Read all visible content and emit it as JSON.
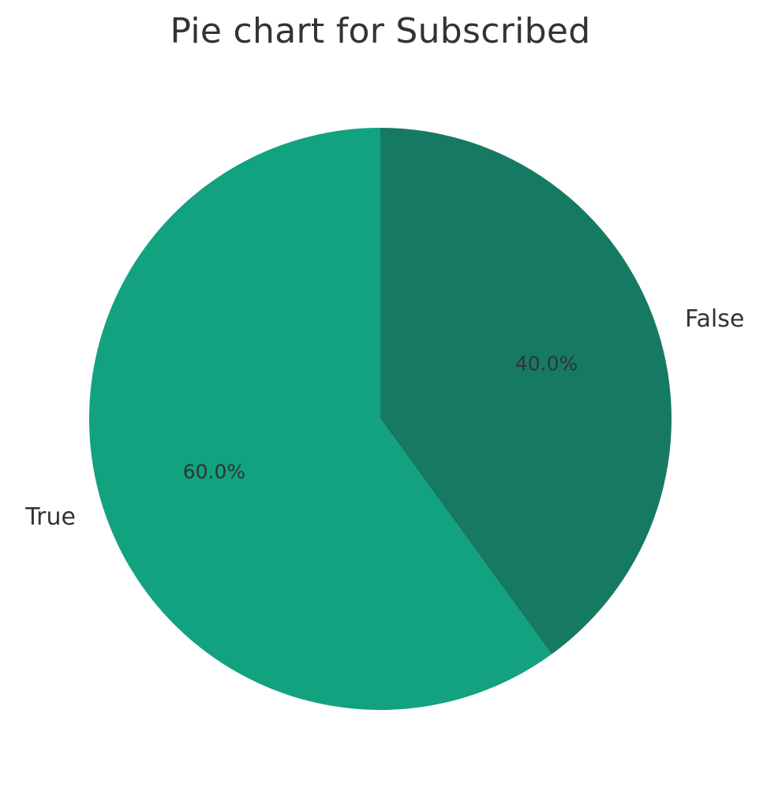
{
  "chart_data": {
    "type": "pie",
    "title": "Pie chart for Subscribed",
    "categories": [
      "False",
      "True"
    ],
    "values": [
      40.0,
      60.0
    ],
    "autopct_labels": [
      "40.0%",
      "60.0%"
    ],
    "colors": [
      "#167a62",
      "#12a27f"
    ],
    "text_color": "#333333",
    "start_angle_deg": 90,
    "direction": "clockwise",
    "legend": "none"
  }
}
